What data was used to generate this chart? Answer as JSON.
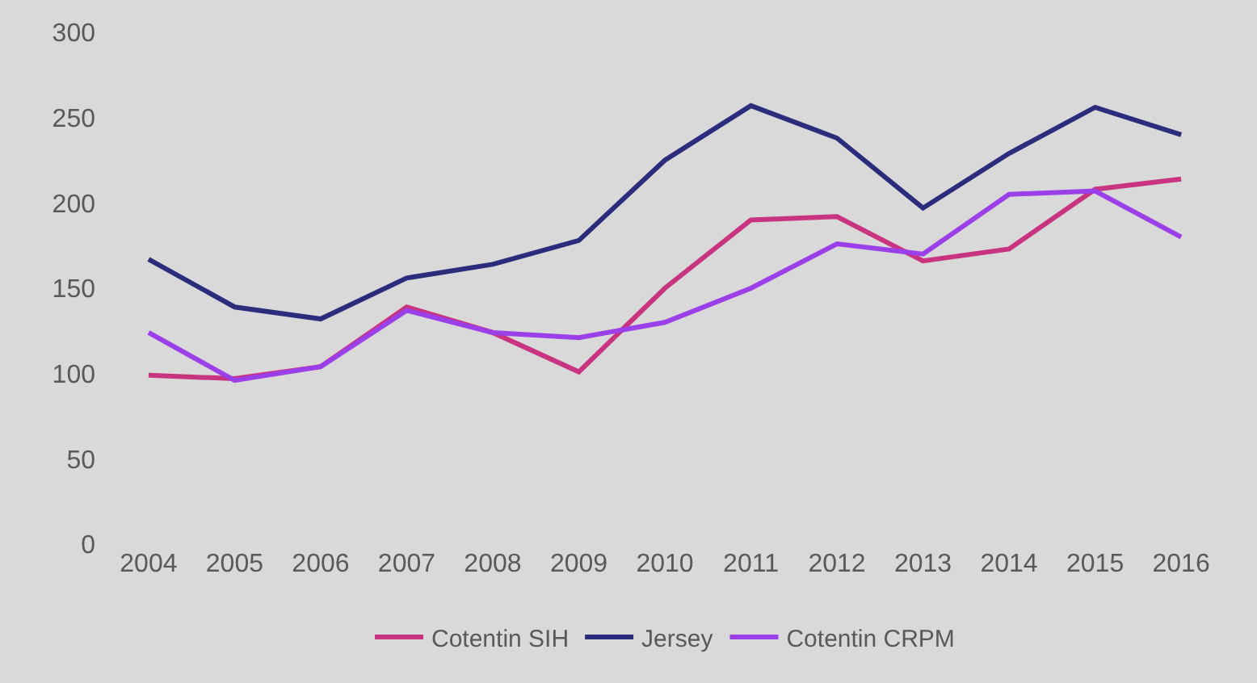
{
  "chart_data": {
    "type": "line",
    "categories": [
      "2004",
      "2005",
      "2006",
      "2007",
      "2008",
      "2009",
      "2010",
      "2011",
      "2012",
      "2013",
      "2014",
      "2015",
      "2016"
    ],
    "series": [
      {
        "name": "Cotentin SIH",
        "color": "#c8347f",
        "values": [
          99,
          97,
          104,
          139,
          124,
          101,
          150,
          190,
          192,
          166,
          173,
          208,
          214
        ]
      },
      {
        "name": "Jersey",
        "color": "#2b2d7c",
        "values": [
          167,
          139,
          132,
          156,
          164,
          178,
          225,
          257,
          238,
          197,
          229,
          256,
          240
        ]
      },
      {
        "name": "Cotentin CRPM",
        "color": "#9b3fe8",
        "values": [
          124,
          96,
          104,
          137,
          124,
          121,
          130,
          150,
          176,
          170,
          205,
          207,
          180
        ]
      }
    ],
    "ylim": [
      0,
      300
    ],
    "yticks": [
      0,
      50,
      100,
      150,
      200,
      250,
      300
    ],
    "grid": false,
    "legend": "bottom",
    "line_style": "solid",
    "marker": "none"
  }
}
